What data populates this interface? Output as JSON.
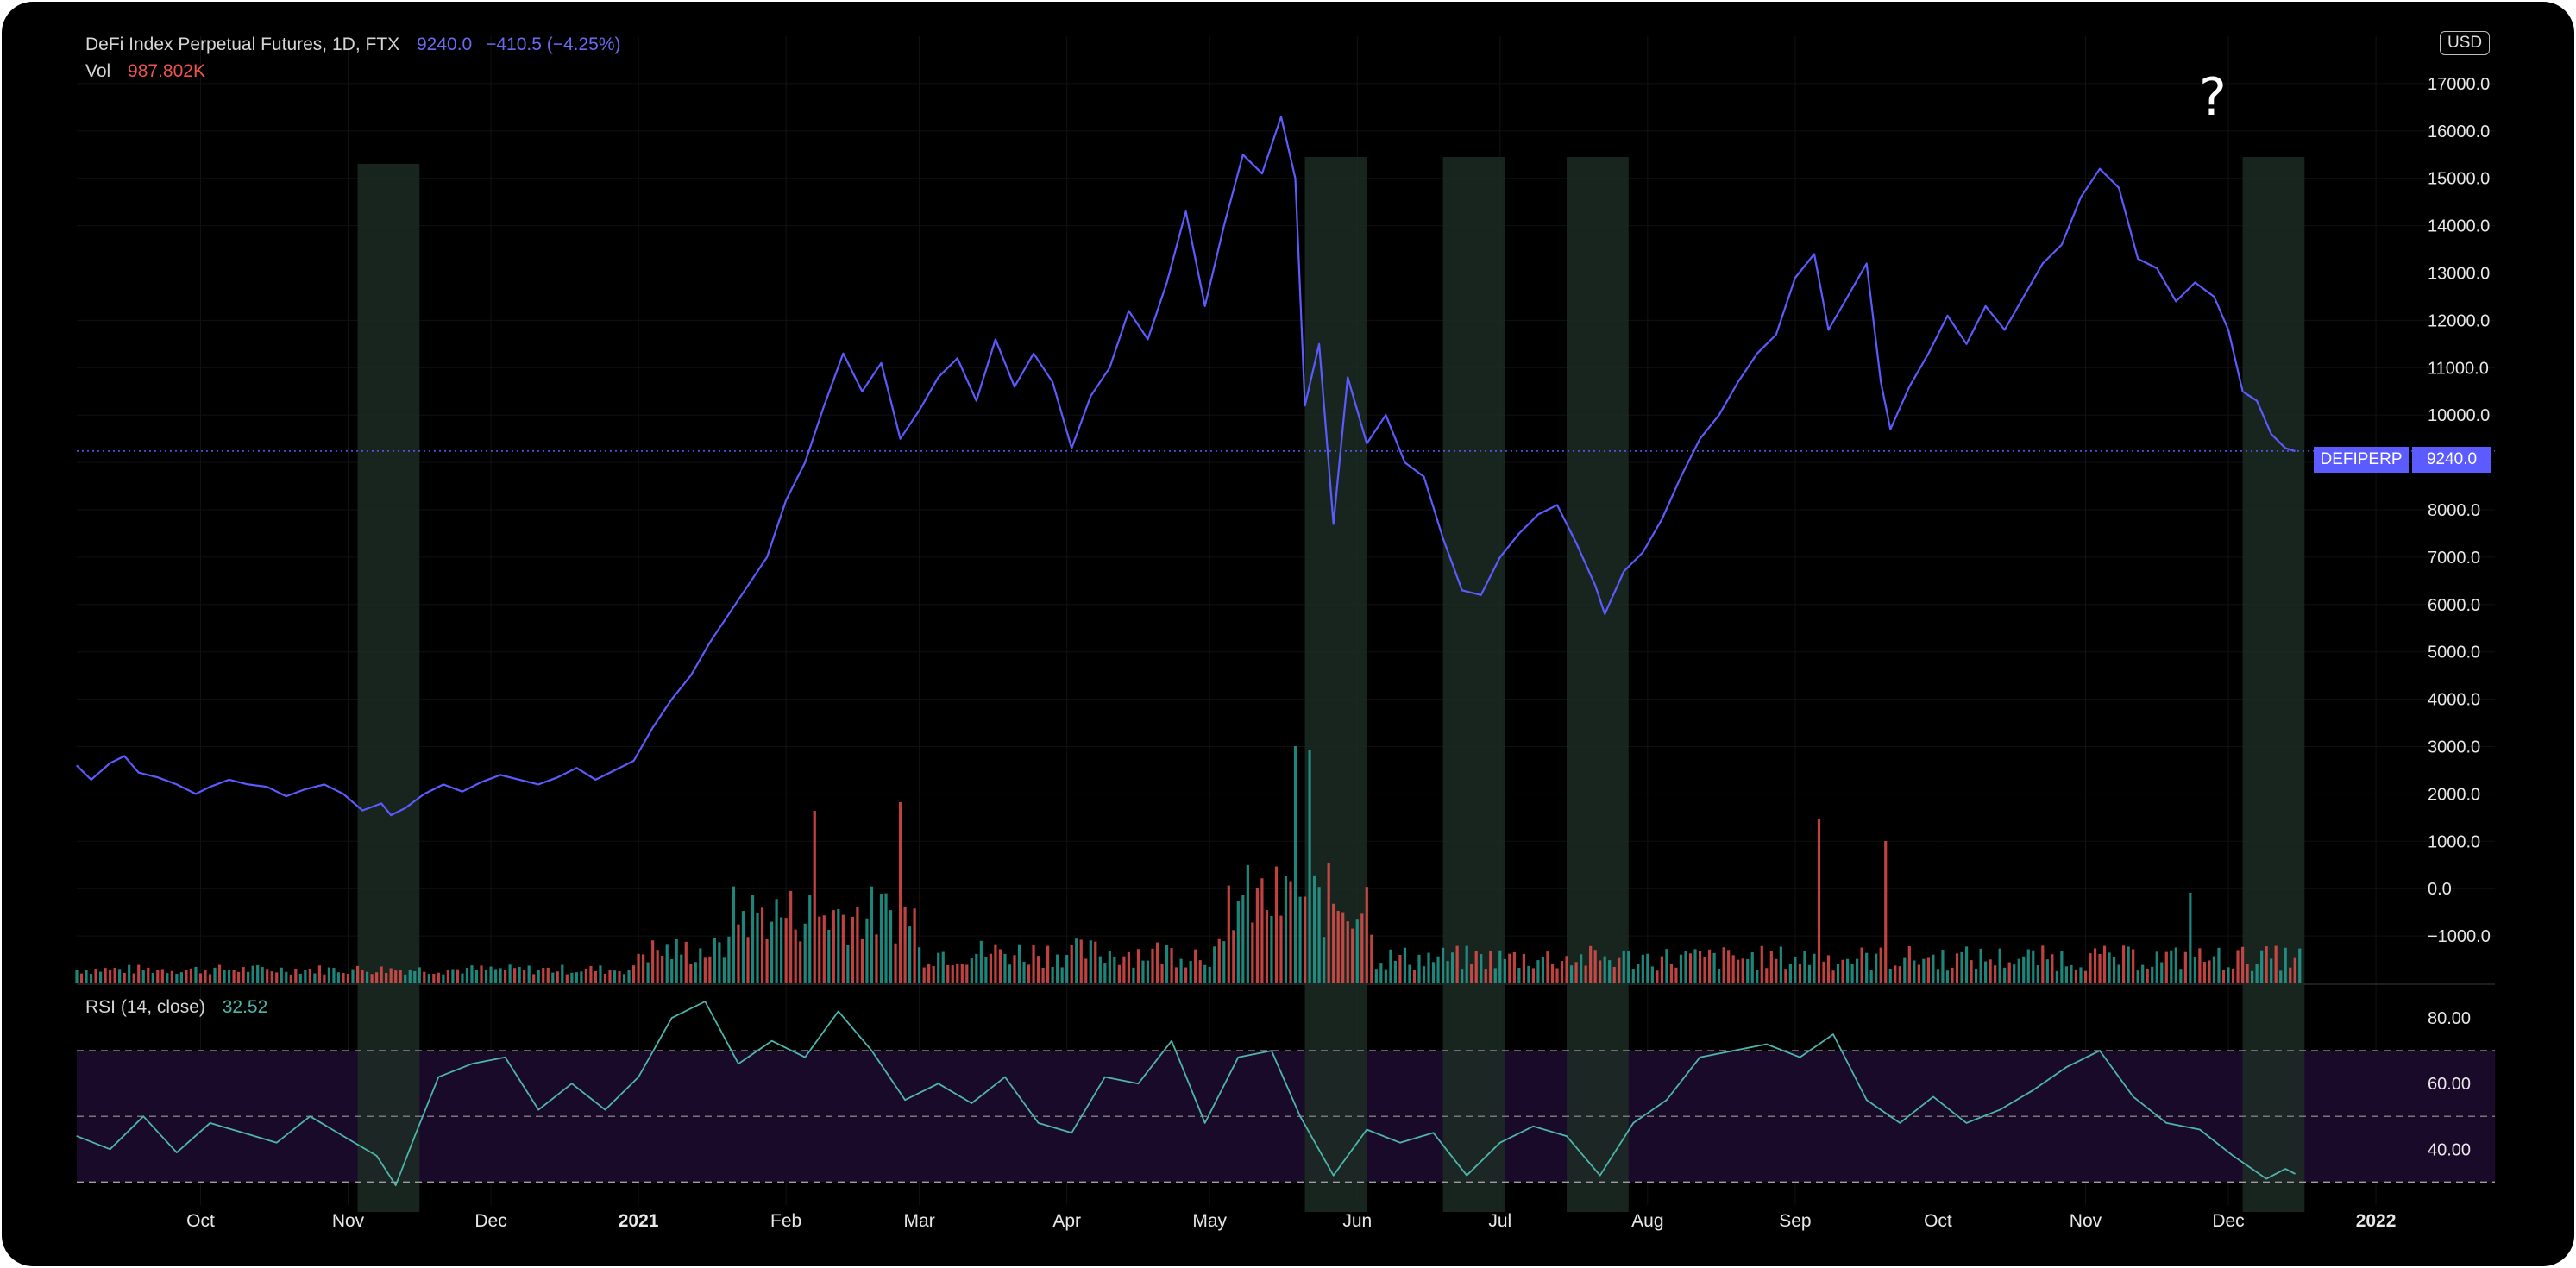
{
  "legend": {
    "title": "DeFi Index Perpetual Futures, 1D, FTX",
    "last_price": "9240.0",
    "change": "−410.5 (−4.25%)",
    "vol_label": "Vol",
    "vol_value": "987.802K",
    "rsi_label": "RSI (14, close)",
    "rsi_value": "32.52"
  },
  "currency": "USD",
  "annotation": "?",
  "symbol_tag": "DEFIPERP",
  "price_tag": "9240.0",
  "colors": {
    "price_line": "#5b5bff",
    "volume_up": "#26a69a",
    "volume_down": "#ef5350",
    "rsi_line": "#4db6ac",
    "rsi_band": "#1a0a2a",
    "highlight": "#1c2b25"
  },
  "chart_data": [
    {
      "type": "line",
      "name": "price",
      "x_axis": {
        "range": [
          "2020-09-05",
          "2022-01-26"
        ],
        "tick_labels": [
          "Oct",
          "Nov",
          "Dec",
          "2021",
          "Feb",
          "Mar",
          "Apr",
          "May",
          "Jun",
          "Jul",
          "Aug",
          "Sep",
          "Oct",
          "Nov",
          "Dec",
          "2022"
        ],
        "tick_dates": [
          "2020-10-01",
          "2020-11-01",
          "2020-12-01",
          "2021-01-01",
          "2021-02-01",
          "2021-03-01",
          "2021-04-01",
          "2021-05-01",
          "2021-06-01",
          "2021-07-01",
          "2021-08-01",
          "2021-09-01",
          "2021-10-01",
          "2021-11-01",
          "2021-12-01",
          "2022-01-01"
        ]
      },
      "y_axis": {
        "ylim": [
          -2000,
          18000
        ],
        "tick_labels": [
          "−1000.0",
          "0.0",
          "1000.0",
          "2000.0",
          "3000.0",
          "4000.0",
          "5000.0",
          "6000.0",
          "7000.0",
          "8000.0",
          "9000.0",
          "10000.0",
          "11000.0",
          "12000.0",
          "13000.0",
          "14000.0",
          "15000.0",
          "16000.0",
          "17000.0"
        ],
        "tick_values": [
          -1000,
          0,
          1000,
          2000,
          3000,
          4000,
          5000,
          6000,
          7000,
          8000,
          9000,
          10000,
          11000,
          12000,
          13000,
          14000,
          15000,
          16000,
          17000
        ]
      },
      "last_value": 9240.0,
      "points": [
        [
          "2020-09-05",
          2600
        ],
        [
          "2020-09-08",
          2300
        ],
        [
          "2020-09-12",
          2650
        ],
        [
          "2020-09-15",
          2800
        ],
        [
          "2020-09-18",
          2450
        ],
        [
          "2020-09-22",
          2350
        ],
        [
          "2020-09-26",
          2200
        ],
        [
          "2020-09-30",
          2000
        ],
        [
          "2020-10-03",
          2150
        ],
        [
          "2020-10-07",
          2300
        ],
        [
          "2020-10-11",
          2200
        ],
        [
          "2020-10-15",
          2150
        ],
        [
          "2020-10-19",
          1950
        ],
        [
          "2020-10-23",
          2100
        ],
        [
          "2020-10-27",
          2200
        ],
        [
          "2020-10-31",
          2000
        ],
        [
          "2020-11-04",
          1650
        ],
        [
          "2020-11-08",
          1800
        ],
        [
          "2020-11-10",
          1550
        ],
        [
          "2020-11-13",
          1700
        ],
        [
          "2020-11-17",
          2000
        ],
        [
          "2020-11-21",
          2200
        ],
        [
          "2020-11-25",
          2050
        ],
        [
          "2020-11-29",
          2250
        ],
        [
          "2020-12-03",
          2400
        ],
        [
          "2020-12-07",
          2300
        ],
        [
          "2020-12-11",
          2200
        ],
        [
          "2020-12-15",
          2350
        ],
        [
          "2020-12-19",
          2550
        ],
        [
          "2020-12-23",
          2300
        ],
        [
          "2020-12-27",
          2500
        ],
        [
          "2020-12-31",
          2700
        ],
        [
          "2021-01-04",
          3400
        ],
        [
          "2021-01-08",
          4000
        ],
        [
          "2021-01-12",
          4500
        ],
        [
          "2021-01-16",
          5200
        ],
        [
          "2021-01-20",
          5800
        ],
        [
          "2021-01-24",
          6400
        ],
        [
          "2021-01-28",
          7000
        ],
        [
          "2021-02-01",
          8200
        ],
        [
          "2021-02-05",
          9000
        ],
        [
          "2021-02-09",
          10200
        ],
        [
          "2021-02-13",
          11300
        ],
        [
          "2021-02-17",
          10500
        ],
        [
          "2021-02-21",
          11100
        ],
        [
          "2021-02-25",
          9500
        ],
        [
          "2021-03-01",
          10100
        ],
        [
          "2021-03-05",
          10800
        ],
        [
          "2021-03-09",
          11200
        ],
        [
          "2021-03-13",
          10300
        ],
        [
          "2021-03-17",
          11600
        ],
        [
          "2021-03-21",
          10600
        ],
        [
          "2021-03-25",
          11300
        ],
        [
          "2021-03-29",
          10700
        ],
        [
          "2021-04-02",
          9300
        ],
        [
          "2021-04-06",
          10400
        ],
        [
          "2021-04-10",
          11000
        ],
        [
          "2021-04-14",
          12200
        ],
        [
          "2021-04-18",
          11600
        ],
        [
          "2021-04-22",
          12800
        ],
        [
          "2021-04-26",
          14300
        ],
        [
          "2021-04-30",
          12300
        ],
        [
          "2021-05-04",
          14000
        ],
        [
          "2021-05-08",
          15500
        ],
        [
          "2021-05-12",
          15100
        ],
        [
          "2021-05-16",
          16300
        ],
        [
          "2021-05-19",
          15000
        ],
        [
          "2021-05-21",
          10200
        ],
        [
          "2021-05-24",
          11500
        ],
        [
          "2021-05-27",
          7700
        ],
        [
          "2021-05-30",
          10800
        ],
        [
          "2021-06-03",
          9400
        ],
        [
          "2021-06-07",
          10000
        ],
        [
          "2021-06-11",
          9000
        ],
        [
          "2021-06-15",
          8700
        ],
        [
          "2021-06-19",
          7400
        ],
        [
          "2021-06-23",
          6300
        ],
        [
          "2021-06-27",
          6200
        ],
        [
          "2021-07-01",
          7000
        ],
        [
          "2021-07-05",
          7500
        ],
        [
          "2021-07-09",
          7900
        ],
        [
          "2021-07-13",
          8100
        ],
        [
          "2021-07-17",
          7300
        ],
        [
          "2021-07-21",
          6400
        ],
        [
          "2021-07-23",
          5800
        ],
        [
          "2021-07-27",
          6700
        ],
        [
          "2021-07-31",
          7100
        ],
        [
          "2021-08-04",
          7800
        ],
        [
          "2021-08-08",
          8700
        ],
        [
          "2021-08-12",
          9500
        ],
        [
          "2021-08-16",
          10000
        ],
        [
          "2021-08-20",
          10700
        ],
        [
          "2021-08-24",
          11300
        ],
        [
          "2021-08-28",
          11700
        ],
        [
          "2021-09-01",
          12900
        ],
        [
          "2021-09-05",
          13400
        ],
        [
          "2021-09-08",
          11800
        ],
        [
          "2021-09-12",
          12500
        ],
        [
          "2021-09-16",
          13200
        ],
        [
          "2021-09-19",
          10700
        ],
        [
          "2021-09-21",
          9700
        ],
        [
          "2021-09-25",
          10600
        ],
        [
          "2021-09-29",
          11300
        ],
        [
          "2021-10-03",
          12100
        ],
        [
          "2021-10-07",
          11500
        ],
        [
          "2021-10-11",
          12300
        ],
        [
          "2021-10-15",
          11800
        ],
        [
          "2021-10-19",
          12500
        ],
        [
          "2021-10-23",
          13200
        ],
        [
          "2021-10-27",
          13600
        ],
        [
          "2021-10-31",
          14600
        ],
        [
          "2021-11-04",
          15200
        ],
        [
          "2021-11-08",
          14800
        ],
        [
          "2021-11-12",
          13300
        ],
        [
          "2021-11-16",
          13100
        ],
        [
          "2021-11-20",
          12400
        ],
        [
          "2021-11-24",
          12800
        ],
        [
          "2021-11-28",
          12500
        ],
        [
          "2021-12-01",
          11800
        ],
        [
          "2021-12-04",
          10500
        ],
        [
          "2021-12-07",
          10300
        ],
        [
          "2021-12-10",
          9600
        ],
        [
          "2021-12-13",
          9300
        ],
        [
          "2021-12-15",
          9240
        ]
      ]
    },
    {
      "type": "bar",
      "name": "Vol",
      "last_value": "987.802K",
      "notes": "volume histogram drawn beneath price, relative heights only"
    },
    {
      "type": "line",
      "name": "RSI (14, close)",
      "y_axis": {
        "ylim": [
          23,
          90
        ],
        "tick_labels": [
          "40.00",
          "60.00",
          "80.00"
        ],
        "tick_values": [
          40,
          60,
          80
        ]
      },
      "bands": {
        "upper": 70,
        "middle": 50,
        "lower": 30
      },
      "last_value": 32.52,
      "points": [
        [
          "2020-09-05",
          44
        ],
        [
          "2020-09-12",
          40
        ],
        [
          "2020-09-19",
          50
        ],
        [
          "2020-09-26",
          39
        ],
        [
          "2020-10-03",
          48
        ],
        [
          "2020-10-10",
          45
        ],
        [
          "2020-10-17",
          42
        ],
        [
          "2020-10-24",
          50
        ],
        [
          "2020-10-31",
          44
        ],
        [
          "2020-11-07",
          38
        ],
        [
          "2020-11-11",
          29
        ],
        [
          "2020-11-15",
          44
        ],
        [
          "2020-11-20",
          62
        ],
        [
          "2020-11-27",
          66
        ],
        [
          "2020-12-04",
          68
        ],
        [
          "2020-12-11",
          52
        ],
        [
          "2020-12-18",
          60
        ],
        [
          "2020-12-25",
          52
        ],
        [
          "2021-01-01",
          62
        ],
        [
          "2021-01-08",
          80
        ],
        [
          "2021-01-15",
          85
        ],
        [
          "2021-01-22",
          66
        ],
        [
          "2021-01-29",
          73
        ],
        [
          "2021-02-05",
          68
        ],
        [
          "2021-02-12",
          82
        ],
        [
          "2021-02-19",
          70
        ],
        [
          "2021-02-26",
          55
        ],
        [
          "2021-03-05",
          60
        ],
        [
          "2021-03-12",
          54
        ],
        [
          "2021-03-19",
          62
        ],
        [
          "2021-03-26",
          48
        ],
        [
          "2021-04-02",
          45
        ],
        [
          "2021-04-09",
          62
        ],
        [
          "2021-04-16",
          60
        ],
        [
          "2021-04-23",
          73
        ],
        [
          "2021-04-30",
          48
        ],
        [
          "2021-05-07",
          68
        ],
        [
          "2021-05-14",
          70
        ],
        [
          "2021-05-20",
          50
        ],
        [
          "2021-05-27",
          32
        ],
        [
          "2021-06-03",
          46
        ],
        [
          "2021-06-10",
          42
        ],
        [
          "2021-06-17",
          45
        ],
        [
          "2021-06-24",
          32
        ],
        [
          "2021-07-01",
          42
        ],
        [
          "2021-07-08",
          47
        ],
        [
          "2021-07-15",
          44
        ],
        [
          "2021-07-22",
          32
        ],
        [
          "2021-07-29",
          48
        ],
        [
          "2021-08-05",
          55
        ],
        [
          "2021-08-12",
          68
        ],
        [
          "2021-08-19",
          70
        ],
        [
          "2021-08-26",
          72
        ],
        [
          "2021-09-02",
          68
        ],
        [
          "2021-09-09",
          75
        ],
        [
          "2021-09-16",
          55
        ],
        [
          "2021-09-23",
          48
        ],
        [
          "2021-09-30",
          56
        ],
        [
          "2021-10-07",
          48
        ],
        [
          "2021-10-14",
          52
        ],
        [
          "2021-10-21",
          58
        ],
        [
          "2021-10-28",
          65
        ],
        [
          "2021-11-04",
          70
        ],
        [
          "2021-11-11",
          56
        ],
        [
          "2021-11-18",
          48
        ],
        [
          "2021-11-25",
          46
        ],
        [
          "2021-12-02",
          38
        ],
        [
          "2021-12-09",
          31
        ],
        [
          "2021-12-13",
          34
        ],
        [
          "2021-12-15",
          32.52
        ]
      ]
    }
  ],
  "highlights": [
    [
      "2020-11-03",
      "2020-11-16"
    ],
    [
      "2021-05-21",
      "2021-06-03"
    ],
    [
      "2021-06-19",
      "2021-07-02"
    ],
    [
      "2021-07-15",
      "2021-07-28"
    ],
    [
      "2021-12-04",
      "2021-12-17"
    ]
  ]
}
